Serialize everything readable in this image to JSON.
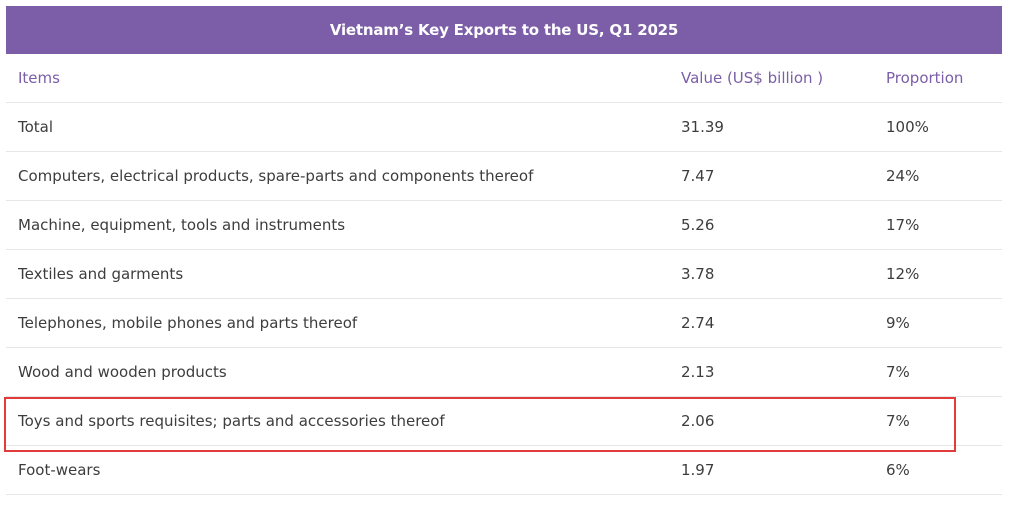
{
  "title": "Vietnam’s Key Exports to the US, Q1 2025",
  "columns": {
    "items": "Items",
    "value": "Value (US$ billion )",
    "proportion": "Proportion"
  },
  "rows": [
    {
      "item": "Total",
      "value": "31.39",
      "proportion": "100%"
    },
    {
      "item": "Computers, electrical products, spare-parts and components thereof",
      "value": "7.47",
      "proportion": "24%"
    },
    {
      "item": "Machine, equipment, tools and instruments",
      "value": "5.26",
      "proportion": "17%"
    },
    {
      "item": "Textiles and garments",
      "value": "3.78",
      "proportion": "12%"
    },
    {
      "item": "Telephones, mobile phones and parts thereof",
      "value": "2.74",
      "proportion": "9%"
    },
    {
      "item": "Wood and wooden products",
      "value": "2.13",
      "proportion": "7%"
    },
    {
      "item": "Toys and sports requisites; parts and accessories thereof",
      "value": "2.06",
      "proportion": "7%"
    },
    {
      "item": "Foot-wears",
      "value": "1.97",
      "proportion": "6%"
    }
  ],
  "highlighted_row_index": 6,
  "colors": {
    "header_bg": "#7b5ea7",
    "header_text": "#7b5ea7",
    "highlight_border": "#e23b3b"
  },
  "chart_data": {
    "type": "table",
    "title": "Vietnam’s Key Exports to the US, Q1 2025",
    "columns": [
      "Items",
      "Value (US$ billion )",
      "Proportion"
    ],
    "rows": [
      [
        "Total",
        31.39,
        "100%"
      ],
      [
        "Computers, electrical products, spare-parts and components thereof",
        7.47,
        "24%"
      ],
      [
        "Machine, equipment, tools and instruments",
        5.26,
        "17%"
      ],
      [
        "Textiles and garments",
        3.78,
        "12%"
      ],
      [
        "Telephones, mobile phones and parts thereof",
        2.74,
        "9%"
      ],
      [
        "Wood and wooden products",
        2.13,
        "7%"
      ],
      [
        "Toys and sports requisites; parts and accessories thereof",
        2.06,
        "7%"
      ],
      [
        "Foot-wears",
        1.97,
        "6%"
      ]
    ]
  }
}
